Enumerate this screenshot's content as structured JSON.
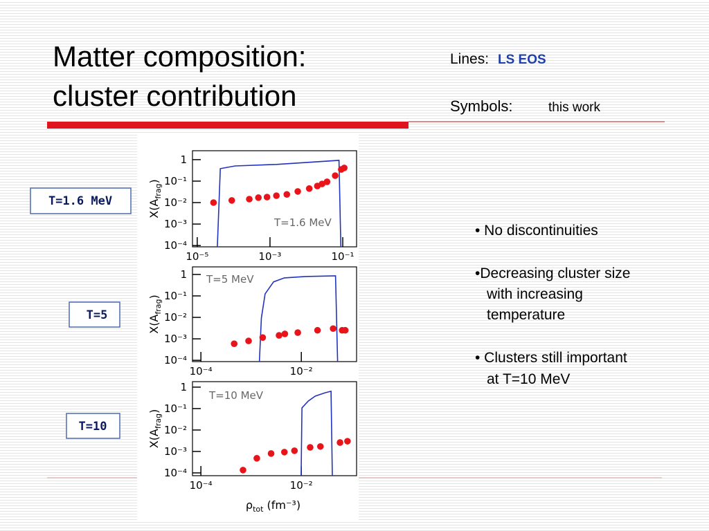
{
  "slide": {
    "title": [
      "Matter composition:",
      "cluster contribution"
    ],
    "lines_label": "Lines:",
    "lines_value": "LS EOS",
    "symbols_label": "Symbols:",
    "symbols_value": "this work",
    "panel_labels": [
      "T=1.6 MeV",
      "T=5",
      "T=10"
    ],
    "bullets": [
      [
        "• No discontinuities"
      ],
      [
        "•Decreasing cluster size",
        "with increasing",
        "temperature"
      ],
      [
        "• Clusters still important",
        "at T=10 MeV"
      ]
    ]
  },
  "chart_data": [
    {
      "type": "line",
      "annotation": "T=1.6 MeV",
      "xscale": "log",
      "yscale": "log",
      "ylabel": {
        "main": "X(A",
        "sub": "frag",
        "end": ")"
      },
      "xlim": [
        7.4e-06,
        0.24
      ],
      "ylim": [
        8.7e-05,
        2.6
      ],
      "xticks": [
        {
          "value": 1e-05,
          "label": "10⁻⁵"
        },
        {
          "value": 0.001,
          "label": "10⁻³"
        },
        {
          "value": 0.1,
          "label": "10⁻¹"
        }
      ],
      "yticks": [
        1,
        {
          "value": 0.1,
          "label": "10⁻¹"
        },
        {
          "value": 0.01,
          "label": "10⁻²"
        },
        {
          "value": 0.001,
          "label": "10⁻³"
        },
        {
          "value": 0.0001,
          "label": "10⁻⁴"
        }
      ],
      "series": [
        {
          "mode": "line",
          "color": "#2233bb",
          "x": [
            3.4e-05,
            4.3e-05,
            0.00011,
            0.0015,
            0.079,
            0.091
          ],
          "values": [
            1e-05,
            0.38,
            0.51,
            0.6,
            0.93,
            1e-05
          ]
        },
        {
          "mode": "markers",
          "color": "#e8141a",
          "x": [
            2.8e-05,
            8.9e-05,
            0.00027,
            0.00048,
            0.00083,
            0.0015,
            0.0029,
            0.0058,
            0.012,
            0.02,
            0.027,
            0.037,
            0.062,
            0.091,
            0.11
          ],
          "values": [
            0.01,
            0.0126,
            0.0145,
            0.017,
            0.018,
            0.021,
            0.024,
            0.033,
            0.045,
            0.059,
            0.074,
            0.093,
            0.18,
            0.35,
            0.41
          ]
        }
      ]
    },
    {
      "type": "line",
      "annotation": "T=5 MeV",
      "xscale": "log",
      "yscale": "log",
      "ylabel": {
        "main": "X(A",
        "sub": "frag",
        "end": ")"
      },
      "xlim": [
        6.8e-05,
        0.126
      ],
      "ylim": [
        8.7e-05,
        2.25
      ],
      "xticks": [
        {
          "value": 0.0001,
          "label": "10⁻⁴"
        },
        {
          "value": 0.01,
          "label": "10⁻²"
        }
      ],
      "yticks": [
        1,
        {
          "value": 0.1,
          "label": "10⁻¹"
        },
        {
          "value": 0.01,
          "label": "10⁻²"
        },
        {
          "value": 0.001,
          "label": "10⁻³"
        },
        {
          "value": 0.0001,
          "label": "10⁻⁴"
        }
      ],
      "series": [
        {
          "mode": "line",
          "color": "#2233bb",
          "x": [
            0.0014,
            0.0016,
            0.0019,
            0.0028,
            0.0046,
            0.012,
            0.048,
            0.054
          ],
          "values": [
            1e-05,
            0.0093,
            0.125,
            0.45,
            0.69,
            0.8,
            0.86,
            1e-05
          ]
        },
        {
          "mode": "markers",
          "color": "#e8141a",
          "x": [
            0.00046,
            0.00089,
            0.0017,
            0.0036,
            0.0047,
            0.0085,
            0.021,
            0.043,
            0.065,
            0.075
          ],
          "values": [
            0.00059,
            0.0008,
            0.00115,
            0.00145,
            0.0017,
            0.00195,
            0.0025,
            0.003,
            0.0025,
            0.0025
          ]
        }
      ]
    },
    {
      "type": "line",
      "annotation": "T=10 MeV",
      "xscale": "log",
      "yscale": "log",
      "ylabel": {
        "main": "X(A",
        "sub": "frag",
        "end": ")"
      },
      "xlabel": {
        "main": "ρ",
        "sub": "tot",
        "end": " (fm⁻³)"
      },
      "xlim": [
        6.8e-05,
        0.126
      ],
      "ylim": [
        7.4e-05,
        1.8
      ],
      "xticks": [
        {
          "value": 0.0001,
          "label": "10⁻⁴"
        },
        {
          "value": 0.01,
          "label": "10⁻²"
        }
      ],
      "yticks": [
        1,
        {
          "value": 0.1,
          "label": "10⁻¹"
        },
        {
          "value": 0.01,
          "label": "10⁻²"
        },
        {
          "value": 0.001,
          "label": "10⁻³"
        },
        {
          "value": 0.0001,
          "label": "10⁻⁴"
        }
      ],
      "series": [
        {
          "mode": "line",
          "color": "#2233bb",
          "x": [
            0.0098,
            0.0103,
            0.0138,
            0.019,
            0.03,
            0.039,
            0.042
          ],
          "values": [
            1e-05,
            0.107,
            0.225,
            0.38,
            0.55,
            0.64,
            1e-05
          ]
        },
        {
          "mode": "markers",
          "color": "#e8141a",
          "x": [
            0.00069,
            0.0013,
            0.0025,
            0.0046,
            0.0073,
            0.015,
            0.024,
            0.059,
            0.083
          ],
          "values": [
            0.000135,
            0.00048,
            0.0008,
            0.00093,
            0.00108,
            0.00155,
            0.0017,
            0.0026,
            0.003
          ]
        }
      ]
    }
  ]
}
